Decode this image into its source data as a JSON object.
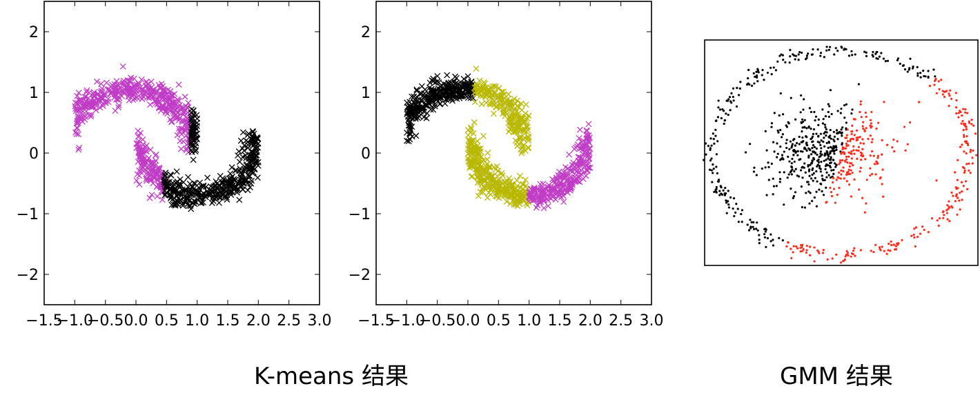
{
  "captions": {
    "kmeans": "K-means 结果",
    "gmm": "GMM 结果"
  },
  "chart_data": [
    {
      "type": "scatter",
      "marker": "x",
      "xlim": [
        -1.5,
        3.0
      ],
      "ylim": [
        -2.5,
        2.5
      ],
      "x_ticks": [
        "−1.5",
        "−1.0",
        "−0.5",
        "0.0",
        "0.5",
        "1.0",
        "1.5",
        "2.0",
        "2.5",
        "3.0"
      ],
      "x_tick_values": [
        -1.5,
        -1.0,
        -0.5,
        0.0,
        0.5,
        1.0,
        1.5,
        2.0,
        2.5,
        3.0
      ],
      "y_ticks": [
        "−2",
        "−1",
        "0",
        "1",
        "2"
      ],
      "y_tick_values": [
        -2,
        -1,
        0,
        1,
        2
      ],
      "series": [
        {
          "color": "#c03cc6",
          "shape": "upper-moon-left",
          "x_range": [
            -1.0,
            0.9
          ],
          "points": 420
        },
        {
          "color": "#c03cc6",
          "shape": "lower-moon-left",
          "x_range": [
            0.0,
            0.45
          ],
          "points": 140
        },
        {
          "color": "#000000",
          "shape": "upper-moon-right",
          "x_range": [
            0.9,
            1.0
          ],
          "points": 60
        },
        {
          "color": "#000000",
          "shape": "lower-moon-right",
          "x_range": [
            0.45,
            2.0
          ],
          "points": 380
        }
      ]
    },
    {
      "type": "scatter",
      "marker": "x",
      "xlim": [
        -1.5,
        3.0
      ],
      "ylim": [
        -2.5,
        2.5
      ],
      "x_ticks": [
        "−1.5",
        "−1.0",
        "−0.5",
        "0.0",
        "0.5",
        "1.0",
        "1.5",
        "2.0",
        "2.5",
        "3.0"
      ],
      "x_tick_values": [
        -1.5,
        -1.0,
        -0.5,
        0.0,
        0.5,
        1.0,
        1.5,
        2.0,
        2.5,
        3.0
      ],
      "y_ticks": [
        "−2",
        "−1",
        "0",
        "1",
        "2"
      ],
      "y_tick_values": [
        -2,
        -1,
        0,
        1,
        2
      ],
      "series": [
        {
          "color": "#000000",
          "shape": "upper-moon-left",
          "x_range": [
            -1.0,
            0.1
          ],
          "points": 300
        },
        {
          "color": "#b8b800",
          "shape": "upper-moon-right",
          "x_range": [
            0.1,
            1.0
          ],
          "points": 220
        },
        {
          "color": "#b8b800",
          "shape": "lower-moon-left",
          "x_range": [
            0.0,
            1.0
          ],
          "points": 300
        },
        {
          "color": "#c03cc6",
          "shape": "lower-moon-right",
          "x_range": [
            1.0,
            2.0
          ],
          "points": 260
        }
      ]
    },
    {
      "type": "scatter",
      "marker": "dot",
      "axes": "none",
      "series": [
        {
          "color": "#000000",
          "shape": "outer-ring",
          "angle_range_deg": [
            45,
            245
          ],
          "points": 230
        },
        {
          "color": "#ff2a1a",
          "shape": "outer-ring",
          "angle_range_deg": [
            245,
            405
          ],
          "points": 200
        },
        {
          "color": "#000000",
          "shape": "inner-blob",
          "side": "left",
          "points": 360
        },
        {
          "color": "#ff2a1a",
          "shape": "inner-blob",
          "side": "right",
          "points": 170
        }
      ]
    }
  ]
}
